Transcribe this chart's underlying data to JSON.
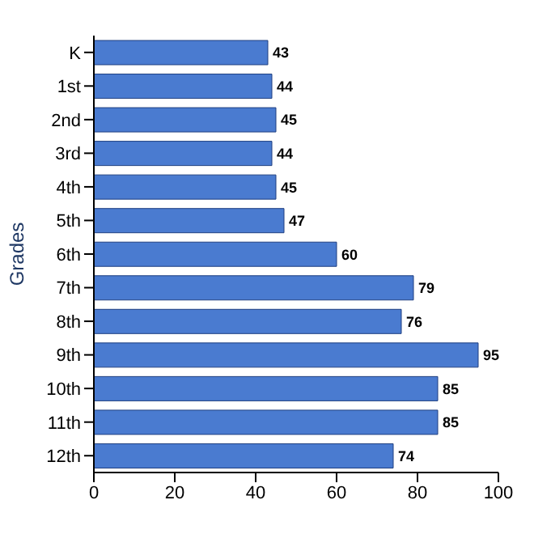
{
  "chart_data": {
    "type": "bar",
    "orientation": "horizontal",
    "ylabel": "Grades",
    "categories": [
      "K",
      "1st",
      "2nd",
      "3rd",
      "4th",
      "5th",
      "6th",
      "7th",
      "8th",
      "9th",
      "10th",
      "11th",
      "12th"
    ],
    "values": [
      43,
      44,
      45,
      44,
      45,
      47,
      60,
      79,
      76,
      95,
      85,
      85,
      74
    ],
    "color": "#4a7bd0",
    "xlim": [
      0,
      100
    ],
    "xticks": [
      0,
      20,
      40,
      60,
      80,
      100
    ],
    "grid": false,
    "data_labels": true
  }
}
